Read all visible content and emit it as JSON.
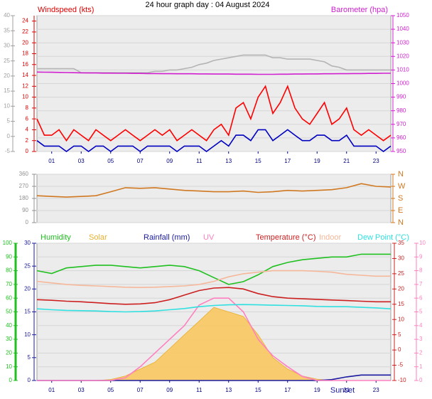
{
  "chart_data": [
    {
      "type": "line",
      "title": "24 hour graph day : 04 August 2024",
      "y_label": "Windspeed (kts)",
      "y2_label": "Barometer (hpa)",
      "ycolor": "#e00000",
      "y2color": "#d020d0",
      "y3color": "#a0a0a0",
      "grid": "y2",
      "xlim": [
        0,
        24
      ],
      "xticks": [
        {
          "value": 1,
          "label": "01"
        },
        {
          "value": 3,
          "label": "03"
        },
        {
          "value": 5,
          "label": "05"
        },
        {
          "value": 7,
          "label": "07"
        },
        {
          "value": 9,
          "label": "09"
        },
        {
          "value": 11,
          "label": "11"
        },
        {
          "value": 13,
          "label": "13"
        },
        {
          "value": 15,
          "label": "15"
        },
        {
          "value": 17,
          "label": "17"
        },
        {
          "value": 19,
          "label": "19"
        },
        {
          "value": 21,
          "label": "21"
        },
        {
          "value": 23,
          "label": "23"
        }
      ],
      "ylim": [
        0,
        25
      ],
      "yticks": [
        0,
        2,
        4,
        6,
        8,
        10,
        12,
        14,
        16,
        18,
        20,
        22,
        24
      ],
      "y2lim": [
        950,
        1050
      ],
      "y2ticks": [
        950,
        960,
        970,
        980,
        990,
        1000,
        1010,
        1020,
        1030,
        1040,
        1050
      ],
      "y3lim": [
        -5,
        40
      ],
      "y3ticks": [
        -5,
        0,
        5,
        10,
        15,
        20,
        25,
        30,
        35,
        40
      ],
      "x": [
        0,
        0.5,
        1,
        1.5,
        2,
        2.5,
        3,
        3.5,
        4,
        4.5,
        5,
        5.5,
        6,
        6.5,
        7,
        7.5,
        8,
        8.5,
        9,
        9.5,
        10,
        10.5,
        11,
        11.5,
        12,
        12.5,
        13,
        13.5,
        14,
        14.5,
        15,
        15.5,
        16,
        16.5,
        17,
        17.5,
        18,
        18.5,
        19,
        19.5,
        20,
        20.5,
        21,
        21.5,
        22,
        22.5,
        23,
        23.5,
        24
      ],
      "series": [
        {
          "color": "#b4b4b4",
          "axis": "y2",
          "values": [
            1011,
            1011,
            1011,
            1011,
            1011,
            1011,
            1008,
            1008,
            1008,
            1008,
            1008,
            1008,
            1008,
            1008,
            1008,
            1008,
            1009,
            1009,
            1010,
            1010,
            1011,
            1012,
            1014,
            1015,
            1017,
            1018,
            1019,
            1020,
            1021,
            1021,
            1021,
            1021,
            1019,
            1019,
            1018,
            1018,
            1018,
            1018,
            1017,
            1016,
            1013,
            1012,
            1010,
            1010,
            1010,
            1010,
            1010,
            1010,
            1010
          ]
        },
        {
          "color": "#d020d0",
          "axis": "y2",
          "values": [
            1008.5,
            1008.4,
            1008.3,
            1008.2,
            1008.1,
            1008.0,
            1007.9,
            1007.8,
            1007.8,
            1007.7,
            1007.7,
            1007.6,
            1007.6,
            1007.5,
            1007.5,
            1007.4,
            1007.4,
            1007.3,
            1007.3,
            1007.2,
            1007.2,
            1007.2,
            1007.1,
            1007.1,
            1007.0,
            1007.0,
            1007.0,
            1006.9,
            1006.9,
            1006.9,
            1006.8,
            1006.8,
            1006.8,
            1006.9,
            1006.9,
            1007.0,
            1007.0,
            1007.1,
            1007.1,
            1007.2,
            1007.2,
            1007.3,
            1007.3,
            1007.4,
            1007.4,
            1007.5,
            1007.5,
            1007.6,
            1007.6
          ]
        },
        {
          "color": "#ff0000",
          "axis": "y",
          "values": [
            6,
            3,
            3,
            4,
            2,
            4,
            3,
            2,
            4,
            3,
            2,
            3,
            4,
            3,
            2,
            3,
            4,
            3,
            4,
            2,
            3,
            4,
            3,
            2,
            4,
            5,
            3,
            8,
            9,
            6,
            10,
            12,
            7,
            9,
            12,
            8,
            6,
            5,
            7,
            9,
            5,
            6,
            8,
            4,
            3,
            4,
            3,
            2,
            3
          ]
        },
        {
          "color": "#0000c0",
          "axis": "y",
          "values": [
            2,
            1,
            1,
            1,
            0,
            1,
            1,
            0,
            1,
            1,
            0,
            1,
            1,
            1,
            0,
            1,
            1,
            1,
            1,
            0,
            1,
            1,
            1,
            0,
            1,
            2,
            1,
            3,
            3,
            2,
            4,
            4,
            2,
            3,
            4,
            3,
            2,
            2,
            3,
            3,
            2,
            2,
            3,
            1,
            1,
            1,
            1,
            0,
            1
          ]
        }
      ]
    },
    {
      "type": "line",
      "ycolor": "#909090",
      "y2color": "#d07820",
      "grid": "y",
      "xlim": [
        0,
        24
      ],
      "ylim": [
        0,
        360
      ],
      "yticks": [
        0,
        90,
        180,
        270,
        360
      ],
      "y2lim": [
        0,
        360
      ],
      "y2ticks": [
        {
          "value": 0,
          "label": "N"
        },
        {
          "value": 90,
          "label": "E"
        },
        {
          "value": 180,
          "label": "S"
        },
        {
          "value": 270,
          "label": "W"
        },
        {
          "value": 360,
          "label": "N"
        }
      ],
      "x": [
        0,
        1,
        2,
        3,
        4,
        5,
        6,
        7,
        8,
        9,
        10,
        11,
        12,
        13,
        14,
        15,
        16,
        17,
        18,
        19,
        20,
        21,
        22,
        23,
        24
      ],
      "series": [
        {
          "color": "#d07820",
          "axis": "y",
          "values": [
            200,
            195,
            190,
            195,
            200,
            230,
            260,
            255,
            260,
            250,
            240,
            235,
            230,
            230,
            235,
            225,
            230,
            240,
            235,
            240,
            245,
            260,
            290,
            270,
            265
          ]
        }
      ]
    },
    {
      "type": "line",
      "annotation": "Sunset",
      "ycolor": "#20c020",
      "y2color": "#cc2020",
      "y3color": "#1a1aa0",
      "y4color": "#ff80c0",
      "grid": "y",
      "xlim": [
        0,
        24
      ],
      "xticks": [
        {
          "value": 1,
          "label": "01"
        },
        {
          "value": 3,
          "label": "03"
        },
        {
          "value": 5,
          "label": "05"
        },
        {
          "value": 7,
          "label": "07"
        },
        {
          "value": 9,
          "label": "09"
        },
        {
          "value": 11,
          "label": "11"
        },
        {
          "value": 13,
          "label": "13"
        },
        {
          "value": 15,
          "label": "15"
        },
        {
          "value": 17,
          "label": "17"
        },
        {
          "value": 19,
          "label": "19"
        },
        {
          "value": 21,
          "label": "21"
        },
        {
          "value": 23,
          "label": "23"
        }
      ],
      "ylim": [
        0,
        100
      ],
      "yticks": [
        0,
        10,
        20,
        30,
        40,
        50,
        60,
        70,
        80,
        90,
        100
      ],
      "y2lim": [
        -10,
        35
      ],
      "y2ticks": [
        -10,
        -5,
        0,
        5,
        10,
        15,
        20,
        25,
        30,
        35
      ],
      "y3lim": [
        0,
        30
      ],
      "y3ticks": [
        0,
        5,
        10,
        15,
        20,
        25,
        30
      ],
      "y4lim": [
        0,
        10
      ],
      "y4ticks": [
        0,
        1,
        2,
        3,
        4,
        5,
        6,
        7,
        8,
        9,
        10
      ],
      "x": [
        0,
        1,
        2,
        3,
        4,
        5,
        6,
        7,
        8,
        9,
        10,
        11,
        12,
        13,
        14,
        15,
        16,
        17,
        18,
        19,
        20,
        21,
        22,
        23,
        24
      ],
      "series": [
        {
          "name": "Humidity",
          "color": "#20c020",
          "axis": "y",
          "values": [
            80,
            78,
            82,
            83,
            84,
            84,
            83,
            82,
            83,
            84,
            83,
            80,
            75,
            70,
            72,
            77,
            83,
            86,
            88,
            89,
            90,
            90,
            92,
            92,
            92
          ]
        },
        {
          "name": "Solar",
          "color": "#e8b030",
          "axis": "y3",
          "style": "area",
          "values": [
            0,
            0,
            0,
            0,
            0,
            0.2,
            1,
            2.5,
            4,
            7,
            10,
            13,
            16,
            15,
            14,
            10,
            5,
            2.5,
            1,
            0.3,
            0,
            0,
            0,
            0,
            0
          ]
        },
        {
          "name": "Rainfall (mm)",
          "color": "#1a1aa0",
          "axis": "y3",
          "values": [
            0,
            0,
            0,
            0,
            0,
            0,
            0,
            0,
            0,
            0,
            0,
            0,
            0,
            0,
            0,
            0,
            0,
            0,
            0,
            0,
            0.2,
            0.8,
            1.2,
            1.2,
            1.2
          ]
        },
        {
          "name": "UV",
          "color": "#ff80c0",
          "axis": "y4",
          "values": [
            0,
            0,
            0,
            0,
            0,
            0,
            0.2,
            1,
            2,
            3,
            4,
            5.5,
            6,
            6,
            5,
            3,
            1.8,
            1,
            0.3,
            0,
            0,
            0,
            0,
            0,
            0
          ]
        },
        {
          "name": "Temperature (°C)",
          "color": "#cc2020",
          "axis": "y2",
          "values": [
            16.5,
            16.3,
            16,
            15.8,
            15.5,
            15.2,
            15,
            15.1,
            15.5,
            16.5,
            18,
            19.5,
            20.3,
            20.5,
            20,
            18.5,
            17.5,
            17,
            16.8,
            16.6,
            16.4,
            16.2,
            16,
            15.8,
            15.8
          ]
        },
        {
          "name": "Indoor",
          "color": "#f5b89a",
          "axis": "y2",
          "values": [
            22.5,
            22,
            21.5,
            21.2,
            21,
            20.8,
            20.6,
            20.5,
            20.6,
            20.8,
            21,
            21.5,
            22.5,
            24,
            25,
            25.5,
            26,
            26,
            26,
            25.8,
            25.5,
            24.8,
            24.5,
            24.2,
            24.2
          ]
        },
        {
          "name": "Dew Point (°C)",
          "color": "#30e0e0",
          "axis": "y2",
          "values": [
            13.5,
            13.2,
            13,
            12.9,
            12.8,
            12.6,
            12.5,
            12.6,
            12.8,
            13.2,
            13.6,
            14.2,
            14.6,
            14.8,
            14.9,
            14.8,
            14.7,
            14.6,
            14.5,
            14.3,
            14.2,
            14.2,
            14,
            13.8,
            13.5
          ]
        }
      ]
    }
  ]
}
